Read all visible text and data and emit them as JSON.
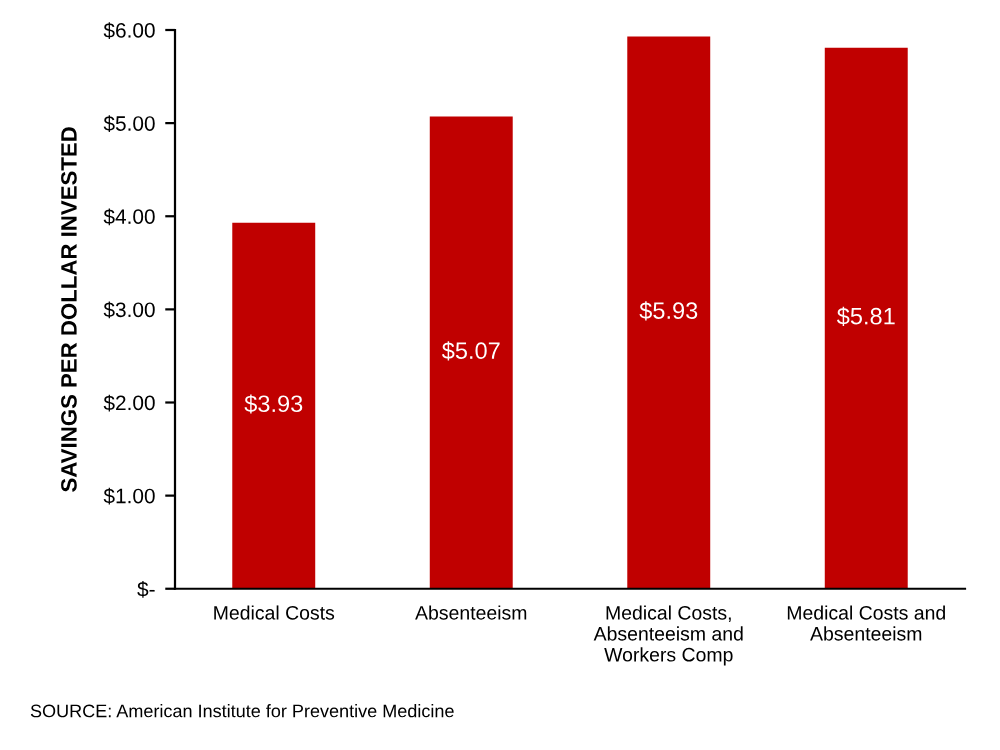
{
  "chart_data": {
    "type": "bar",
    "categories": [
      "Medical Costs",
      "Absenteeism",
      "Medical Costs,\nAbsenteeism and\nWorkers Comp",
      "Medical Costs and\nAbsenteeism"
    ],
    "values": [
      3.93,
      5.07,
      5.93,
      5.81
    ],
    "value_labels": [
      "$3.93",
      "$5.07",
      "$5.93",
      "$5.81"
    ],
    "color": "#c00000",
    "ylabel": "SAVINGS PER DOLLAR INVESTED",
    "ylim": [
      0,
      6
    ],
    "yticks": [
      {
        "value": 0,
        "label": "$-"
      },
      {
        "value": 1,
        "label": "$1.00"
      },
      {
        "value": 2,
        "label": "$2.00"
      },
      {
        "value": 3,
        "label": "$3.00"
      },
      {
        "value": 4,
        "label": "$4.00"
      },
      {
        "value": 5,
        "label": "$5.00"
      },
      {
        "value": 6,
        "label": "$6.00"
      }
    ],
    "grid": false,
    "legend": false,
    "annotations": [
      "SOURCE: American Institute for Preventive Medicine"
    ]
  }
}
